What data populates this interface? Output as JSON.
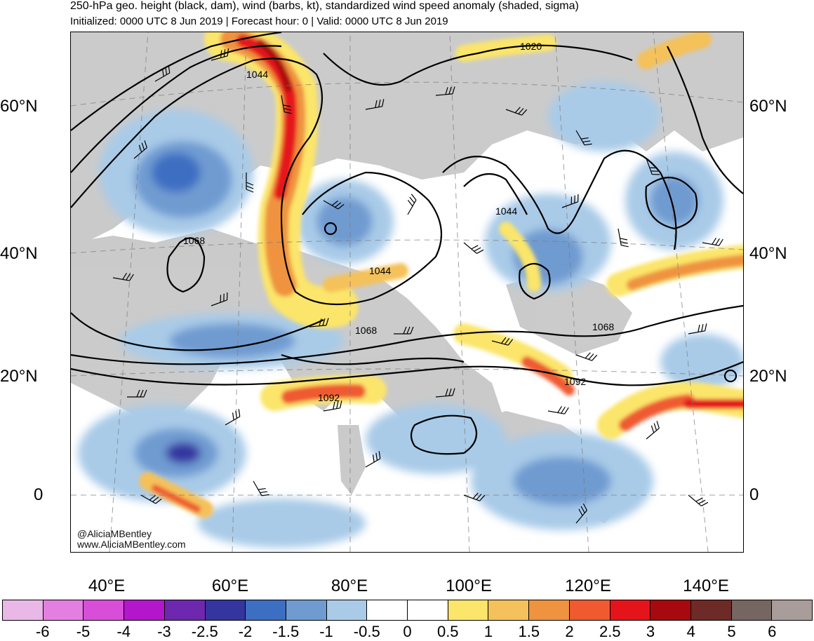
{
  "title": "250-hPa geo. height (black, dam), wind (barbs, kt), standardized wind speed anomaly (shaded, sigma)",
  "subtitle": "Initialized: 0000 UTC 8 Jun 2019 | Forecast hour: 0 | Valid: 0000 UTC 8 Jun 2019",
  "lat_labels": [
    "60°N",
    "40°N",
    "20°N",
    "0"
  ],
  "lon_labels": [
    "40°E",
    "60°E",
    "80°E",
    "100°E",
    "120°E",
    "140°E"
  ],
  "contour_labels": [
    "1020",
    "1044",
    "1044",
    "1044",
    "1068",
    "1068",
    "1068",
    "1092",
    "1092"
  ],
  "watermark": {
    "handle": "@AliciaMBentley",
    "site": "www.AliciaMBentley.com"
  },
  "colorbar": {
    "labels": [
      "-6",
      "-5",
      "-4",
      "-3",
      "-2.5",
      "-2",
      "-1.5",
      "-1",
      "-0.5",
      "0",
      "0.5",
      "1",
      "1.5",
      "2",
      "2.5",
      "3",
      "4",
      "5",
      "6"
    ],
    "colors": [
      "#e9b8e6",
      "#e47fe2",
      "#d94ed9",
      "#b416cc",
      "#6e28b0",
      "#3535a0",
      "#3c6ec2",
      "#6f9bd1",
      "#a9cbe8",
      "#ffffff",
      "#ffffff",
      "#fbe56a",
      "#f4c15a",
      "#ef9340",
      "#ef5a30",
      "#e5141a",
      "#a8090e",
      "#6e2a26",
      "#756661",
      "#a89d9a"
    ]
  },
  "colors": {
    "land": "#c8c8c8",
    "contour": "#000000"
  }
}
